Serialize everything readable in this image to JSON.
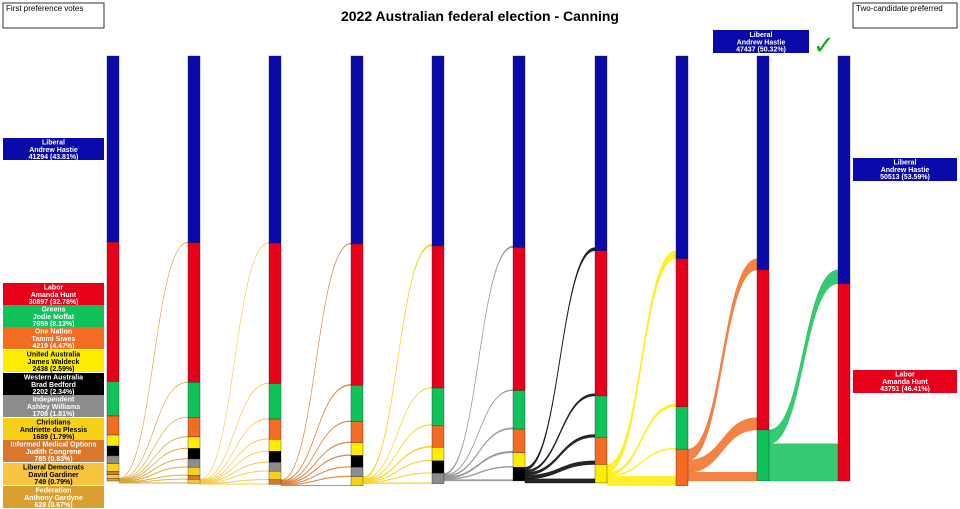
{
  "header": {
    "title": "2022 Australian federal election - Canning",
    "left_box": "First preference votes",
    "right_box": "Two-candidate preferred"
  },
  "chart_data": {
    "type": "sankey",
    "title": "2022 Australian federal election - Canning",
    "first_preferences": [
      {
        "party": "Liberal",
        "name": "Andrew Hastie",
        "votes": "41294",
        "pct": "43.81%",
        "value": 41294,
        "color": "#0a0aaa"
      },
      {
        "party": "Labor",
        "name": "Amanda Hunt",
        "votes": "30897",
        "pct": "32.78%",
        "value": 30897,
        "color": "#e8001b"
      },
      {
        "party": "Greens",
        "name": "Jodie Moffat",
        "votes": "7659",
        "pct": "8.13%",
        "value": 7659,
        "color": "#10c25b"
      },
      {
        "party": "One Nation",
        "name": "Tammi Siwes",
        "votes": "4219",
        "pct": "4.47%",
        "value": 4219,
        "color": "#f36c21"
      },
      {
        "party": "United Australia",
        "name": "James Waldeck",
        "votes": "2438",
        "pct": "2.59%",
        "value": 2438,
        "color": "#ffed00"
      },
      {
        "party": "Western Australia",
        "name": "Brad Bedford",
        "votes": "2202",
        "pct": "2.34%",
        "value": 2202,
        "color": "#000000"
      },
      {
        "party": "Independent",
        "name": "Ashley Williams",
        "votes": "1708",
        "pct": "1.81%",
        "value": 1708,
        "color": "#8c8c8c"
      },
      {
        "party": "Christians",
        "name": "Andriette du Plessis",
        "votes": "1689",
        "pct": "1.79%",
        "value": 1689,
        "color": "#f7d117"
      },
      {
        "party": "Informed Medical Options",
        "name": "Judith Congrene",
        "votes": "785",
        "pct": "0.83%",
        "value": 785,
        "color": "#d9782d"
      },
      {
        "party": "Liberal Democrats",
        "name": "David Gardiner",
        "votes": "749",
        "pct": "0.79%",
        "value": 749,
        "color": "#f9c440"
      },
      {
        "party": "Federation",
        "name": "Anthony Gardyne",
        "votes": "628",
        "pct": "0.67%",
        "value": 628,
        "color": "#d9a030"
      }
    ],
    "rounds": [
      [
        41294,
        30897,
        7659,
        4219,
        2438,
        2202,
        1708,
        1689,
        785,
        749,
        628
      ],
      [
        41400,
        31000,
        7760,
        4330,
        2560,
        2330,
        1830,
        1800,
        880,
        880,
        0
      ],
      [
        41520,
        31130,
        7880,
        4470,
        2680,
        2460,
        1950,
        1920,
        1000,
        0,
        0
      ],
      [
        41700,
        31350,
        8050,
        4650,
        2850,
        2600,
        2100,
        2030,
        0,
        0,
        0
      ],
      [
        42150,
        31500,
        8250,
        4900,
        3000,
        2750,
        2300,
        0,
        0,
        0,
        0
      ],
      [
        42500,
        31700,
        8550,
        5250,
        3200,
        3050,
        0,
        0,
        0,
        0,
        0
      ],
      [
        43200,
        32200,
        9150,
        6050,
        4100,
        0,
        0,
        0,
        0,
        0,
        0
      ],
      [
        45000,
        32800,
        9400,
        8100,
        0,
        0,
        0,
        0,
        0,
        0,
        0
      ],
      [
        47437,
        35500,
        11300,
        0,
        0,
        0,
        0,
        0,
        0,
        0,
        0
      ],
      [
        50513,
        43751,
        0,
        0,
        0,
        0,
        0,
        0,
        0,
        0,
        0
      ]
    ],
    "leader_label": {
      "party": "Liberal",
      "name": "Andrew Hastie",
      "votes": "47437",
      "pct": "50.32%"
    },
    "two_candidate_preferred": [
      {
        "party": "Liberal",
        "name": "Andrew Hastie",
        "votes": "50513",
        "pct": "53.59%",
        "value": 50513,
        "color": "#0a0aaa"
      },
      {
        "party": "Labor",
        "name": "Amanda Hunt",
        "votes": "43751",
        "pct": "46.41%",
        "value": 43751,
        "color": "#e8001b"
      }
    ]
  }
}
